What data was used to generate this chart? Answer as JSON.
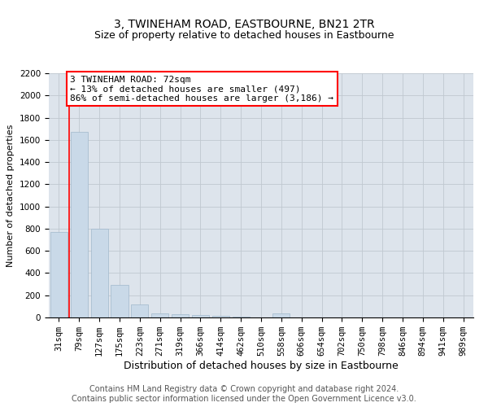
{
  "title": "3, TWINEHAM ROAD, EASTBOURNE, BN21 2TR",
  "subtitle": "Size of property relative to detached houses in Eastbourne",
  "xlabel": "Distribution of detached houses by size in Eastbourne",
  "ylabel": "Number of detached properties",
  "categories": [
    "31sqm",
    "79sqm",
    "127sqm",
    "175sqm",
    "223sqm",
    "271sqm",
    "319sqm",
    "366sqm",
    "414sqm",
    "462sqm",
    "510sqm",
    "558sqm",
    "606sqm",
    "654sqm",
    "702sqm",
    "750sqm",
    "798sqm",
    "846sqm",
    "894sqm",
    "941sqm",
    "989sqm"
  ],
  "values": [
    770,
    1670,
    800,
    290,
    115,
    38,
    28,
    20,
    18,
    8,
    0,
    38,
    0,
    0,
    0,
    0,
    0,
    0,
    0,
    0,
    0
  ],
  "bar_color": "#c9d9e8",
  "bar_edgecolor": "#a0b8cc",
  "vline_x": 0.5,
  "vline_color": "red",
  "annotation_text": "3 TWINEHAM ROAD: 72sqm\n← 13% of detached houses are smaller (497)\n86% of semi-detached houses are larger (3,186) →",
  "annotation_box_color": "white",
  "annotation_box_edgecolor": "red",
  "ylim": [
    0,
    2200
  ],
  "yticks": [
    0,
    200,
    400,
    600,
    800,
    1000,
    1200,
    1400,
    1600,
    1800,
    2000,
    2200
  ],
  "grid_color": "#c0c8d0",
  "background_color": "#dde4ec",
  "footer_line1": "Contains HM Land Registry data © Crown copyright and database right 2024.",
  "footer_line2": "Contains public sector information licensed under the Open Government Licence v3.0.",
  "title_fontsize": 10,
  "subtitle_fontsize": 9,
  "xlabel_fontsize": 9,
  "ylabel_fontsize": 8,
  "tick_fontsize": 7.5,
  "annotation_fontsize": 8,
  "footer_fontsize": 7
}
